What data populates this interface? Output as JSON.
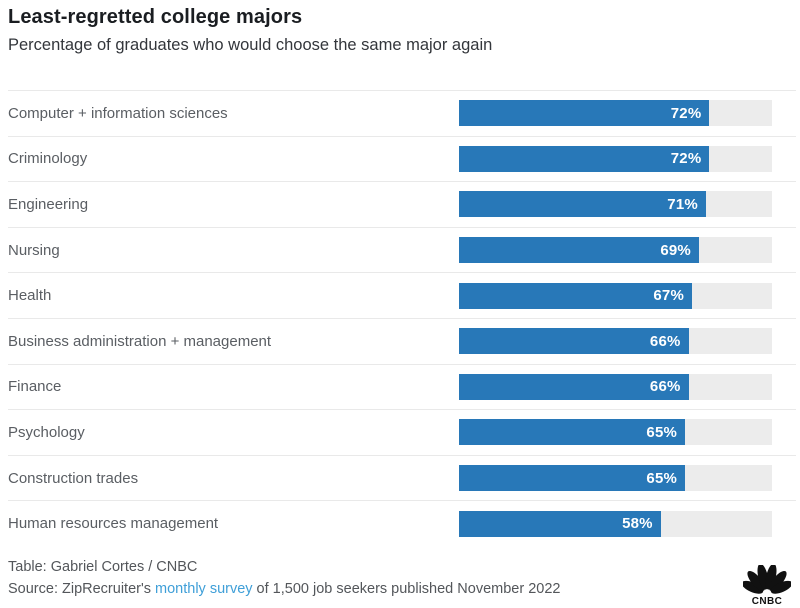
{
  "header": {
    "title": "Least-regretted college majors",
    "subtitle": "Percentage of graduates who would choose the same major again"
  },
  "chart_data": {
    "type": "bar",
    "orientation": "horizontal",
    "title": "Least-regretted college majors",
    "subtitle": "Percentage of graduates who would choose the same major again",
    "categories": [
      "Computer + information sciences",
      "Criminology",
      "Engineering",
      "Nursing",
      "Health",
      "Business administration + management",
      "Finance",
      "Psychology",
      "Construction trades",
      "Human resources management"
    ],
    "values": [
      72,
      72,
      71,
      69,
      67,
      66,
      66,
      65,
      65,
      58
    ],
    "value_labels": [
      "72%",
      "72%",
      "71%",
      "69%",
      "67%",
      "66%",
      "66%",
      "65%",
      "65%",
      "58%"
    ],
    "unit": "%",
    "xlim": [
      0,
      90
    ],
    "grid": false,
    "legend": false,
    "bar_color": "#2878b8",
    "track_color": "#ececec",
    "value_label_color": "#ffffff"
  },
  "footer": {
    "credit": "Table: Gabriel Cortes / CNBC",
    "source_prefix": "Source: ZipRecruiter's ",
    "source_link": "monthly survey",
    "source_suffix": " of 1,500 job seekers published November 2022"
  },
  "logo": {
    "name": "cnbc-logo",
    "label": "CNBC"
  },
  "colors": {
    "accent": "#2878b8",
    "track": "#ececec",
    "link": "#3f9fd8",
    "divider": "#e9e9e9",
    "text_dark": "#1a1d21",
    "text_gray": "#53565a",
    "logo": "#111111"
  }
}
